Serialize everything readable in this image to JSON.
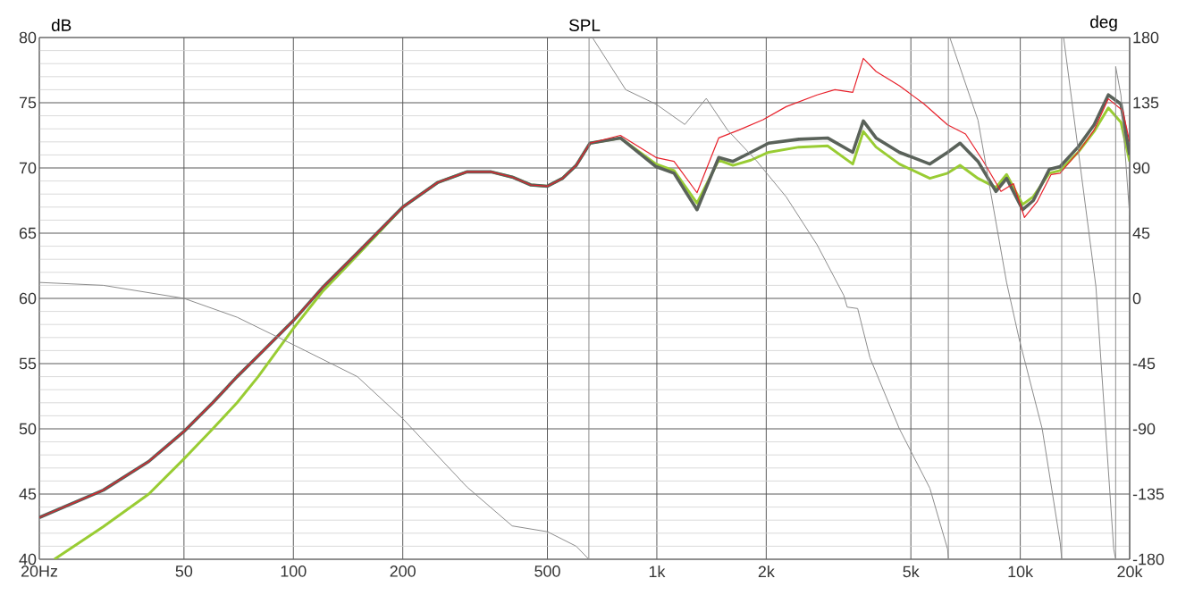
{
  "chart_data": {
    "type": "line",
    "title": "SPL",
    "ylabel": "dB",
    "y2label": "deg",
    "log": "x",
    "grid": true,
    "xlim": [
      20,
      20000
    ],
    "xticks": [
      {
        "value": 20,
        "label": "20Hz"
      },
      50,
      100,
      200,
      500,
      {
        "value": 1000,
        "label": "1k"
      },
      {
        "value": 2000,
        "label": "2k"
      },
      {
        "value": 5000,
        "label": "5k"
      },
      {
        "value": 10000,
        "label": "10k"
      },
      {
        "value": 20000,
        "label": "20k"
      }
    ],
    "ylim": [
      40,
      80
    ],
    "yticks": [
      40,
      45,
      50,
      55,
      60,
      65,
      70,
      75,
      80
    ],
    "y2lim": [
      -180,
      180
    ],
    "y2ticks": [
      -180,
      -135,
      -90,
      -45,
      0,
      45,
      90,
      135,
      180
    ],
    "series": [
      {
        "color": "#8c8c8c",
        "axis": "y2",
        "x": [
          20,
          30,
          50,
          70,
          100,
          150,
          200,
          300,
          400,
          500,
          600,
          650,
          651,
          665,
          821,
          995,
          1194,
          1368,
          1567,
          1880,
          2270,
          2760,
          3270,
          3340,
          3570,
          3860,
          4650,
          5640,
          6310,
          6340,
          6341,
          6400,
          7650,
          9170,
          9930,
          11490,
          12870,
          13000,
          13001,
          13160,
          16150,
          18080,
          18300,
          18301,
          18930,
          20000
        ],
        "values": [
          11,
          9,
          0,
          -13,
          -32,
          -54,
          -83,
          -130,
          -157,
          -161,
          -171,
          -180,
          180,
          180,
          144,
          134,
          120,
          138,
          116,
          95,
          70,
          37,
          2,
          -6,
          -7,
          -41,
          -90,
          -131,
          -173,
          -180,
          180,
          180,
          123,
          11,
          -28,
          -90,
          -168,
          -180,
          180,
          180,
          8,
          -173,
          -180,
          160,
          140,
          57
        ]
      },
      {
        "color": "#99cc33",
        "x": [
          22,
          30,
          40,
          50,
          60,
          70,
          80,
          100,
          120,
          150,
          200,
          250,
          300,
          350,
          400,
          450,
          500,
          550,
          600,
          655,
          794,
          995,
          1115,
          1290,
          1480,
          1620,
          1815,
          2030,
          2460,
          2950,
          3460,
          3700,
          4010,
          4650,
          5640,
          6310,
          6830,
          7650,
          8570,
          9170,
          10150,
          10860,
          12020,
          12870,
          14420,
          15960,
          17470,
          18930,
          20000
        ],
        "values": [
          40,
          42.5,
          45,
          47.7,
          50,
          52,
          54,
          57.7,
          60.5,
          63.3,
          67,
          68.9,
          69.7,
          69.7,
          69.3,
          68.7,
          68.6,
          69.2,
          70.2,
          71.9,
          72.3,
          70.3,
          69.8,
          67.3,
          70.6,
          70.2,
          70.6,
          71.2,
          71.6,
          71.7,
          70.3,
          72.8,
          71.6,
          70.3,
          69.2,
          69.6,
          70.2,
          69.2,
          68.5,
          69.5,
          67.2,
          67.8,
          69.6,
          69.8,
          71.2,
          72.8,
          74.6,
          73.5,
          70.5
        ]
      },
      {
        "color": "#5a625a",
        "x": [
          20,
          30,
          40,
          50,
          60,
          70,
          80,
          100,
          120,
          150,
          200,
          250,
          300,
          350,
          400,
          450,
          500,
          550,
          600,
          655,
          794,
          995,
          1115,
          1290,
          1480,
          1620,
          1815,
          2030,
          2460,
          2950,
          3460,
          3700,
          4010,
          4650,
          5640,
          6310,
          6830,
          7650,
          8570,
          9170,
          10150,
          10860,
          12020,
          12870,
          14420,
          15960,
          17470,
          18930,
          20000
        ],
        "values": [
          43.2,
          45.3,
          47.5,
          49.8,
          52,
          54,
          55.6,
          58.3,
          60.8,
          63.5,
          67,
          68.9,
          69.7,
          69.7,
          69.3,
          68.7,
          68.6,
          69.2,
          70.2,
          71.9,
          72.3,
          70.1,
          69.6,
          66.8,
          70.8,
          70.5,
          71.2,
          71.9,
          72.2,
          72.3,
          71.2,
          73.6,
          72.3,
          71.2,
          70.3,
          71.2,
          71.9,
          70.5,
          68.2,
          69.2,
          66.8,
          67.5,
          69.9,
          70.1,
          71.6,
          73.3,
          75.6,
          74.9,
          71
        ]
      },
      {
        "color": "#e8202a",
        "x": [
          20,
          30,
          40,
          50,
          60,
          70,
          80,
          100,
          120,
          150,
          200,
          250,
          300,
          350,
          400,
          450,
          500,
          550,
          600,
          655,
          794,
          995,
          1115,
          1290,
          1480,
          1680,
          1960,
          2270,
          2760,
          3090,
          3460,
          3700,
          4010,
          4650,
          5440,
          6310,
          7070,
          7920,
          8850,
          9580,
          10270,
          11120,
          12160,
          12870,
          14420,
          15960,
          17470,
          19140,
          20000
        ],
        "values": [
          43.2,
          45.3,
          47.5,
          49.8,
          52,
          54,
          55.6,
          58.3,
          60.8,
          63.5,
          67,
          68.9,
          69.7,
          69.7,
          69.3,
          68.7,
          68.6,
          69.2,
          70.2,
          71.9,
          72.5,
          70.8,
          70.5,
          68.1,
          72.3,
          72.9,
          73.7,
          74.7,
          75.6,
          76,
          75.8,
          78.4,
          77.4,
          76.3,
          74.9,
          73.3,
          72.6,
          70.5,
          68.2,
          68.8,
          66.2,
          67.4,
          69.5,
          69.6,
          71.2,
          72.9,
          75.3,
          74.4,
          72
        ]
      }
    ]
  }
}
